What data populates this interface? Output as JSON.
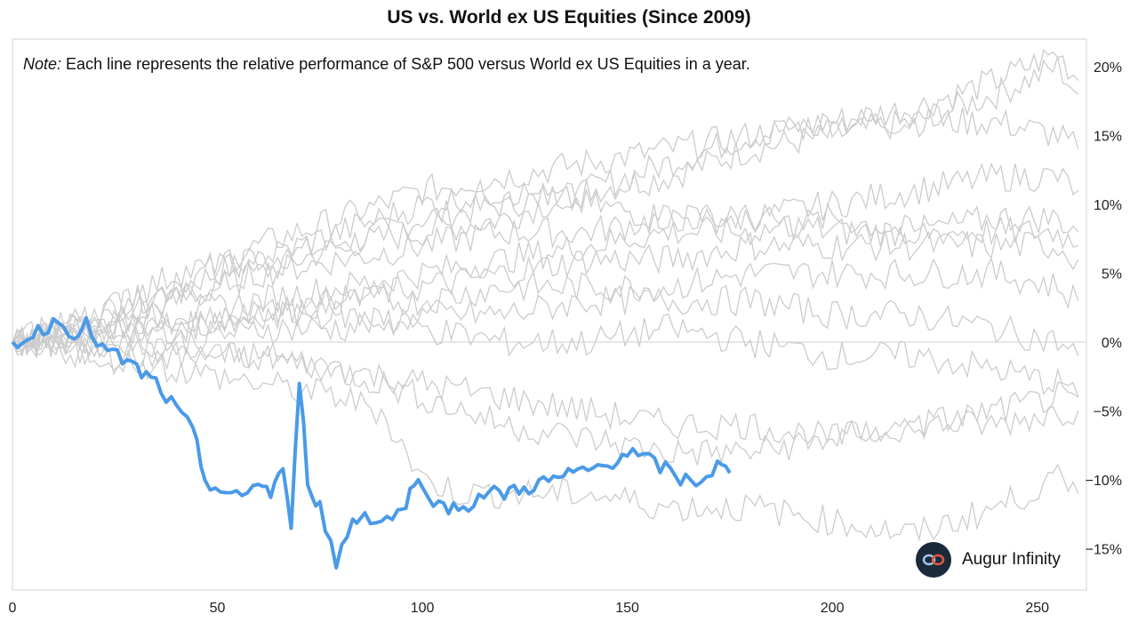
{
  "chart_data": {
    "type": "line",
    "title": "US vs. World ex US Equities (Since 2009)",
    "annotation_label": "Note:",
    "annotation_text": "Each line represents the relative performance of S&P 500 versus World ex US Equities in a year.",
    "xlim": [
      0,
      262
    ],
    "ylim": [
      -18,
      22
    ],
    "x_ticks": [
      0,
      50,
      100,
      150,
      200,
      250
    ],
    "x_tick_labels": [
      "0",
      "50",
      "100",
      "150",
      "200",
      "250"
    ],
    "y_ticks": [
      20,
      15,
      10,
      5,
      0,
      -5,
      -10,
      -15
    ],
    "y_tick_labels": [
      "20%",
      "15%",
      "10%",
      "5%",
      "0%",
      "−5%",
      "−10%",
      "−15%"
    ],
    "y_axis_side": "right",
    "grid": false,
    "zero_line": true,
    "highlight_color": "#4a9ae8",
    "background_color": "#cccccc",
    "series": [
      {
        "role": "background",
        "x": [
          0,
          20,
          40,
          60,
          80,
          100,
          120,
          140,
          160,
          180,
          200,
          220,
          240,
          255,
          260
        ],
        "values": [
          0,
          2,
          4,
          6,
          7,
          9,
          10,
          11,
          12,
          14,
          15,
          16,
          18,
          20,
          18
        ]
      },
      {
        "role": "background",
        "x": [
          0,
          20,
          40,
          60,
          80,
          100,
          120,
          140,
          160,
          180,
          200,
          220,
          240,
          255,
          260
        ],
        "values": [
          0,
          1,
          3,
          5,
          7,
          8,
          9,
          11,
          13,
          15,
          16,
          17,
          19,
          21,
          19
        ]
      },
      {
        "role": "background",
        "x": [
          0,
          20,
          40,
          60,
          80,
          100,
          120,
          140,
          160,
          180,
          200,
          220,
          240,
          255,
          260
        ],
        "values": [
          0,
          2,
          4,
          7,
          9,
          11,
          12,
          13,
          14,
          15,
          16,
          16,
          16,
          15,
          14
        ]
      },
      {
        "role": "background",
        "x": [
          0,
          20,
          40,
          60,
          80,
          100,
          120,
          140,
          160,
          180,
          200,
          220,
          240,
          255,
          260
        ],
        "values": [
          0,
          1,
          3,
          5,
          6,
          7,
          8,
          8,
          9,
          9,
          10,
          11,
          12,
          12,
          11
        ]
      },
      {
        "role": "background",
        "x": [
          0,
          20,
          40,
          60,
          80,
          100,
          120,
          140,
          160,
          180,
          200,
          220,
          240,
          255,
          260
        ],
        "values": [
          0,
          2,
          5,
          6,
          8,
          10,
          11,
          10,
          9,
          9,
          8,
          8,
          9,
          9,
          8
        ]
      },
      {
        "role": "background",
        "x": [
          0,
          20,
          40,
          60,
          80,
          100,
          120,
          140,
          160,
          180,
          200,
          220,
          240,
          255,
          260
        ],
        "values": [
          0,
          1,
          2,
          3,
          4,
          5,
          6,
          7,
          8,
          8,
          9,
          8,
          8,
          8,
          7
        ]
      },
      {
        "role": "background",
        "x": [
          0,
          20,
          40,
          60,
          80,
          100,
          120,
          140,
          160,
          180,
          200,
          220,
          240,
          255,
          260
        ],
        "values": [
          0,
          1,
          1,
          2,
          3,
          4,
          5,
          6,
          6,
          7,
          7,
          7,
          7,
          7,
          6
        ]
      },
      {
        "role": "background",
        "x": [
          0,
          20,
          40,
          60,
          80,
          100,
          120,
          140,
          160,
          180,
          200,
          220,
          240,
          255,
          260
        ],
        "values": [
          0,
          0,
          1,
          2,
          3,
          3,
          4,
          4,
          4,
          5,
          5,
          5,
          5,
          4,
          3
        ]
      },
      {
        "role": "background",
        "x": [
          0,
          20,
          40,
          60,
          80,
          100,
          120,
          140,
          160,
          180,
          200,
          220,
          240,
          255,
          260
        ],
        "values": [
          0,
          0,
          0,
          1,
          1,
          2,
          2,
          3,
          3,
          3,
          2,
          2,
          1,
          0,
          -1
        ]
      },
      {
        "role": "background",
        "x": [
          0,
          20,
          40,
          60,
          80,
          100,
          120,
          140,
          160,
          180,
          200,
          220,
          240,
          255,
          260
        ],
        "values": [
          0,
          1,
          1,
          2,
          2,
          1,
          0,
          0,
          1,
          0,
          -1,
          -1,
          -2,
          -3,
          -4
        ]
      },
      {
        "role": "background",
        "x": [
          0,
          20,
          40,
          60,
          80,
          100,
          120,
          140,
          160,
          180,
          200,
          220,
          240,
          255,
          260
        ],
        "values": [
          0,
          -1,
          -1,
          -1,
          -2,
          -3,
          -4,
          -5,
          -6,
          -6,
          -7,
          -6,
          -6,
          -5,
          -5
        ]
      },
      {
        "role": "background",
        "x": [
          0,
          20,
          40,
          60,
          80,
          100,
          120,
          140,
          160,
          180,
          200,
          220,
          240,
          255,
          260
        ],
        "values": [
          0,
          0,
          -1,
          -1,
          -2,
          -4,
          -6,
          -7,
          -8,
          -8,
          -7,
          -6,
          -5,
          -4,
          -4
        ]
      },
      {
        "role": "background",
        "x": [
          0,
          20,
          40,
          60,
          80,
          90,
          100,
          110,
          120,
          140,
          160,
          180,
          200,
          220,
          240,
          255,
          260
        ],
        "values": [
          0,
          -1,
          -2,
          -3,
          -4,
          -5,
          -10,
          -11,
          -11,
          -11,
          -12,
          -12,
          -13,
          -14,
          -12,
          -10,
          -11
        ]
      },
      {
        "role": "highlight",
        "x": [
          0,
          5,
          10,
          15,
          18,
          22,
          28,
          35,
          40,
          44,
          47,
          52,
          56,
          60,
          63,
          66,
          68,
          70,
          72,
          75,
          79,
          83,
          86,
          90,
          94,
          97,
          100,
          104,
          110,
          115,
          120,
          126,
          132,
          138,
          144,
          150,
          154,
          158,
          163,
          168,
          172,
          175
        ],
        "values": [
          0,
          0.5,
          1.5,
          0.8,
          1.2,
          -0.5,
          -1.5,
          -3,
          -5,
          -6.5,
          -10,
          -11,
          -11.5,
          -10,
          -11,
          -9,
          -14,
          -2.5,
          -10,
          -12,
          -16,
          -13,
          -12.5,
          -13,
          -12.5,
          -11,
          -10,
          -12,
          -12,
          -11,
          -11,
          -10.5,
          -10,
          -9.5,
          -9,
          -8,
          -8.5,
          -9,
          -10,
          -10,
          -9,
          -9.5
        ]
      }
    ]
  },
  "logo": {
    "text": "Augur Infinity"
  }
}
